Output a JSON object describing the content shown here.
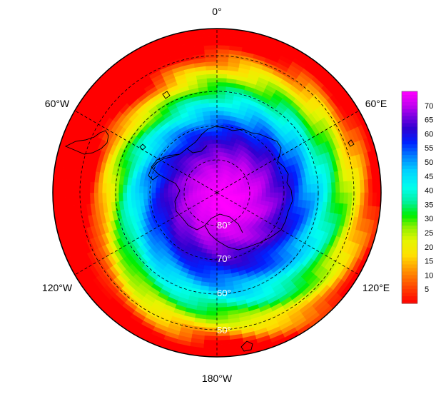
{
  "map": {
    "projection": "south-polar-stereographic",
    "longitude_labels": {
      "top": "0°",
      "upper_left": "60°W",
      "upper_right": "60°E",
      "lower_left": "120°W",
      "lower_right": "120°E",
      "bottom": "180°W"
    },
    "latitude_labels": [
      "80°",
      "70°",
      "60°",
      "50°"
    ],
    "colors": {
      "ring_outline": "#000000",
      "grid": "#000000",
      "coastline": "#000000"
    }
  },
  "colorbar": {
    "ticks": [
      "70",
      "65",
      "60",
      "55",
      "50",
      "45",
      "40",
      "35",
      "30",
      "25",
      "20",
      "15",
      "10",
      "5"
    ],
    "range": [
      0,
      75
    ],
    "stops": [
      {
        "value": 0,
        "color": "#ff0000"
      },
      {
        "value": 6,
        "color": "#ff4a00"
      },
      {
        "value": 12,
        "color": "#ff9900"
      },
      {
        "value": 17,
        "color": "#ffe000"
      },
      {
        "value": 22,
        "color": "#e6f500"
      },
      {
        "value": 27,
        "color": "#8cf000"
      },
      {
        "value": 31,
        "color": "#00ee00"
      },
      {
        "value": 36,
        "color": "#00f0a0"
      },
      {
        "value": 41,
        "color": "#00ffee"
      },
      {
        "value": 47,
        "color": "#00d0ff"
      },
      {
        "value": 52,
        "color": "#0080ff"
      },
      {
        "value": 57,
        "color": "#0020ff"
      },
      {
        "value": 62,
        "color": "#3000d0"
      },
      {
        "value": 66,
        "color": "#7800e0"
      },
      {
        "value": 70,
        "color": "#c400f0"
      },
      {
        "value": 75,
        "color": "#ff00ff"
      }
    ]
  }
}
